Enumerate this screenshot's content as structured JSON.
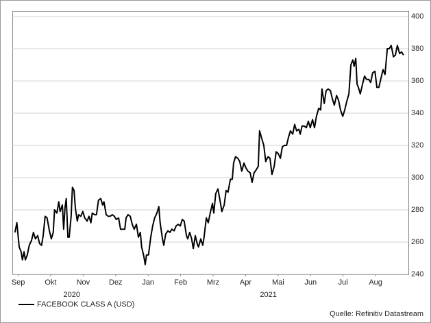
{
  "chart_data": {
    "type": "line",
    "series": [
      {
        "name": "FACEBOOK CLASS A (USD)",
        "color": "#000000",
        "x": [
          0.4,
          0.46,
          0.53,
          0.59,
          0.63,
          0.68,
          0.72,
          0.78,
          0.84,
          0.91,
          0.97,
          1.03,
          1.1,
          1.16,
          1.22,
          1.27,
          1.33,
          1.39,
          1.46,
          1.52,
          1.58,
          1.62,
          1.69,
          1.75,
          1.79,
          1.86,
          1.9,
          1.94,
          1.98,
          2.03,
          2.07,
          2.13,
          2.17,
          2.22,
          2.26,
          2.32,
          2.36,
          2.43,
          2.49,
          2.55,
          2.62,
          2.68,
          2.74,
          2.78,
          2.85,
          2.91,
          2.97,
          3.04,
          3.1,
          3.14,
          3.21,
          3.27,
          3.33,
          3.4,
          3.46,
          3.52,
          3.59,
          3.65,
          3.71,
          3.78,
          3.82,
          3.88,
          3.95,
          4.01,
          4.07,
          4.14,
          4.2,
          4.26,
          4.3,
          4.37,
          4.41,
          4.45,
          4.51,
          4.58,
          4.64,
          4.7,
          4.77,
          4.83,
          4.87,
          4.94,
          4.98,
          5.04,
          5.11,
          5.17,
          5.23,
          5.3,
          5.36,
          5.42,
          5.49,
          5.55,
          5.61,
          5.68,
          5.72,
          5.78,
          5.84,
          5.89,
          5.95,
          6.01,
          6.05,
          6.12,
          6.18,
          6.22,
          6.29,
          6.35,
          6.41,
          6.48,
          6.52,
          6.58,
          6.65,
          6.71,
          6.77,
          6.84,
          6.9,
          6.96,
          7.03,
          7.09,
          7.13,
          7.19,
          7.26,
          7.32,
          7.38,
          7.45,
          7.51,
          7.57,
          7.64,
          7.7,
          7.76,
          7.83,
          7.89,
          7.93,
          8.0,
          8.06,
          8.12,
          8.19,
          8.25,
          8.31,
          8.38,
          8.44,
          8.5,
          8.57,
          8.63,
          8.69,
          8.76,
          8.82,
          8.88,
          8.95,
          9.01,
          9.07,
          9.14,
          9.18,
          9.24,
          9.3,
          9.37,
          9.43,
          9.49,
          9.56,
          9.62,
          9.68,
          9.75,
          9.81,
          9.85,
          9.92,
          9.98,
          10.04,
          10.11,
          10.17,
          10.23,
          10.3,
          10.36,
          10.42,
          10.49,
          10.55,
          10.61,
          10.68,
          10.74,
          10.8,
          10.84,
          10.89,
          10.93,
          10.97,
          11.03,
          11.1,
          11.16,
          11.22,
          11.29,
          11.35,
          11.41,
          11.48,
          11.54,
          11.6,
          11.67,
          11.73,
          11.79,
          11.86,
          11.92,
          11.98,
          12.05,
          12.11,
          12.17,
          12.24,
          12.3,
          12.36
        ],
        "values": [
          266,
          272,
          257,
          254,
          249,
          254,
          249,
          252,
          258,
          261,
          266,
          262,
          264,
          259,
          258,
          264,
          276,
          275,
          267,
          262,
          266,
          280,
          278,
          285,
          279,
          283,
          268,
          281,
          287,
          263,
          263,
          276,
          294,
          292,
          281,
          273,
          277,
          276,
          279,
          275,
          273,
          276,
          272,
          278,
          277,
          277,
          286,
          287,
          283,
          285,
          277,
          276,
          276,
          277,
          276,
          274,
          275,
          268,
          268,
          268,
          275,
          277,
          276,
          271,
          268,
          271,
          263,
          266,
          257,
          251,
          246,
          252,
          252,
          263,
          270,
          275,
          278,
          282,
          272,
          262,
          258,
          265,
          267,
          266,
          268,
          267,
          270,
          271,
          270,
          274,
          273,
          264,
          262,
          266,
          262,
          256,
          264,
          259,
          257,
          262,
          258,
          263,
          275,
          272,
          278,
          284,
          278,
          290,
          293,
          286,
          279,
          283,
          292,
          291,
          299,
          299,
          309,
          313,
          312,
          310,
          304,
          309,
          306,
          304,
          303,
          297,
          303,
          305,
          307,
          329,
          324,
          320,
          310,
          313,
          312,
          302,
          307,
          316,
          315,
          312,
          319,
          320,
          320,
          325,
          329,
          327,
          333,
          329,
          330,
          327,
          332,
          332,
          331,
          335,
          331,
          336,
          331,
          338,
          343,
          342,
          355,
          346,
          354,
          355,
          354,
          349,
          345,
          351,
          348,
          342,
          338,
          342,
          347,
          352,
          370,
          373,
          369,
          374,
          358,
          356,
          352,
          358,
          363,
          361,
          361,
          359,
          365,
          366,
          356,
          356,
          362,
          367,
          364,
          380,
          380,
          382,
          375,
          376,
          382,
          377,
          378,
          376
        ]
      }
    ],
    "xlim": [
      0.32,
      12.51
    ],
    "xticks": [
      {
        "value": 0.5,
        "label": "Sep"
      },
      {
        "value": 1.5,
        "label": "Okt"
      },
      {
        "value": 2.5,
        "label": "Nov"
      },
      {
        "value": 3.5,
        "label": "Dez"
      },
      {
        "value": 4.5,
        "label": "Jan"
      },
      {
        "value": 5.5,
        "label": "Feb"
      },
      {
        "value": 6.5,
        "label": "Mrz"
      },
      {
        "value": 7.5,
        "label": "Apr"
      },
      {
        "value": 8.5,
        "label": "Mai"
      },
      {
        "value": 9.5,
        "label": "Jun"
      },
      {
        "value": 10.5,
        "label": "Jul"
      },
      {
        "value": 11.5,
        "label": "Aug"
      }
    ],
    "year_labels": [
      {
        "value": 2.15,
        "label": "2020"
      },
      {
        "value": 8.2,
        "label": "2021"
      }
    ],
    "ylim": [
      240,
      400
    ],
    "yticks": [
      240,
      260,
      280,
      300,
      320,
      340,
      360,
      380,
      400
    ],
    "y_axis_side": "right",
    "grid": true,
    "legend": "bottom-left",
    "source": "Quelle: Refinitiv Datastream"
  }
}
